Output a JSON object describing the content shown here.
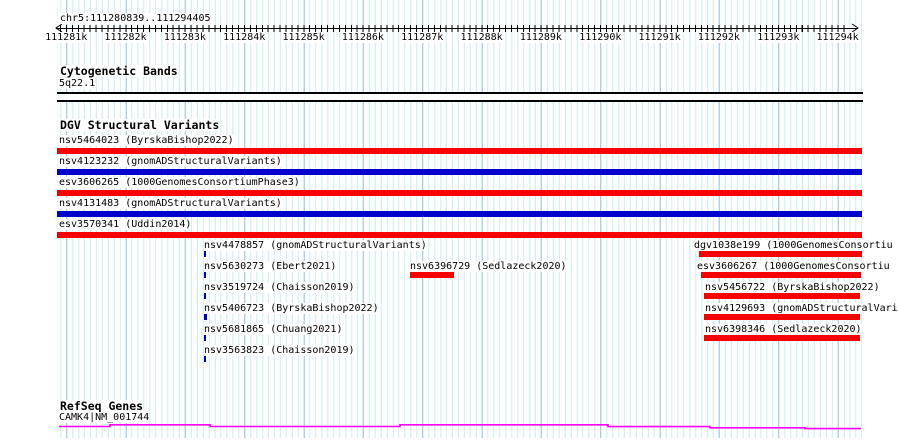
{
  "region_label": "chr5:111280839..111294405",
  "ruler": {
    "tick_labels": [
      "111281k",
      "111282k",
      "111283k",
      "111284k",
      "111285k",
      "111286k",
      "111287k",
      "111288k",
      "111289k",
      "111290k",
      "111291k",
      "111292k",
      "111293k",
      "111294k"
    ]
  },
  "cytoband": {
    "title": "Cytogenetic Bands",
    "band": "5q22.1"
  },
  "dgv": {
    "title": "DGV Structural Variants",
    "full_span_variants": [
      {
        "label": "nsv5464023 (ByrskaBishop2022)",
        "color": "#f60000"
      },
      {
        "label": "nsv4123232 (gnomADStructuralVariants)",
        "color": "#0000cc"
      },
      {
        "label": "esv3606265 (1000GenomesConsortiumPhase3)",
        "color": "#f60000"
      },
      {
        "label": "nsv4131483 (gnomADStructuralVariants)",
        "color": "#0000cc"
      },
      {
        "label": "esv3570341 (Uddin2014)",
        "color": "#f60000"
      }
    ],
    "point_variants": [
      {
        "label": "nsv4478857 (gnomADStructuralVariants)",
        "color": "#0000cc"
      },
      {
        "label": "nsv5630273 (Ebert2021)",
        "color": "#0000cc"
      },
      {
        "label": "nsv3519724 (Chaisson2019)",
        "color": "#0000cc"
      },
      {
        "label": "nsv5406723 (ByrskaBishop2022)",
        "color": "#0000cc"
      },
      {
        "label": "nsv5681865 (Chuang2021)",
        "color": "#0000cc"
      },
      {
        "label": "nsv3563823 (Chaisson2019)",
        "color": "#0000cc"
      }
    ],
    "boxed_variant": {
      "label": "nsv6396729 (Sedlazeck2020)",
      "color": "#f60000"
    },
    "right_variants": [
      {
        "label": "dgv1038e199 (1000GenomesConsortiu",
        "color": "#f60000"
      },
      {
        "label": "esv3606267 (1000GenomesConsortiu",
        "color": "#f60000"
      },
      {
        "label": "nsv5456722 (ByrskaBishop2022)",
        "color": "#f60000"
      },
      {
        "label": "nsv4129693 (gnomADStructuralVari",
        "color": "#f60000"
      },
      {
        "label": "nsv6398346 (Sedlazeck2020)",
        "color": "#f60000"
      }
    ]
  },
  "refseq": {
    "title": "RefSeq Genes",
    "gene": "CAMK4|NM_001744",
    "color": "#ff00ff"
  },
  "colors": {
    "variant_loss_red": "#f60000",
    "variant_gain_blue": "#0000cc",
    "grid_minor": "#c9ecee",
    "grid_major": "#98c6dc",
    "gene_magenta": "#ff00ff"
  }
}
